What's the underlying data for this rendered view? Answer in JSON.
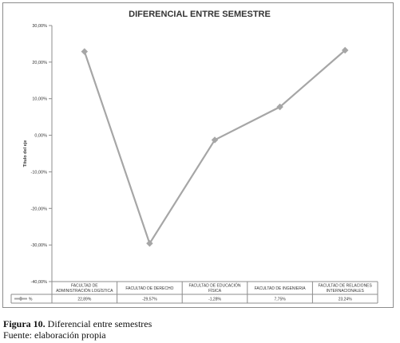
{
  "chart_data": {
    "type": "line",
    "title": "DIFERENCIAL ENTRE SEMESTRE",
    "ylabel": "Título del eje",
    "xlabel": "",
    "ylim": [
      -40,
      30
    ],
    "ytick_values": [
      30,
      20,
      10,
      0,
      -10,
      -20,
      -30,
      -40
    ],
    "ytick_labels": [
      "30,00%",
      "20,00%",
      "10,00%",
      "0,00%",
      "-10,00%",
      "-20,00%",
      "-30,00%",
      "-40,00%"
    ],
    "grid": false,
    "categories": [
      [
        "FACULTAD DE",
        "ADMINISTRACIÓN LOGÍSTICA"
      ],
      [
        "FACULTAD DE DERECHO"
      ],
      [
        "FACULTAD DE EDUCACIÓN",
        "FÍSICA"
      ],
      [
        "FACULTAD DE INGENIERIA"
      ],
      [
        "FACULTAD DE RELACIONES",
        "INTERNACIONALES"
      ]
    ],
    "series": [
      {
        "name": "%",
        "color": "#a6a6a6",
        "values": [
          22.89,
          -29.57,
          -1.28,
          7.75,
          23.24
        ],
        "value_labels": [
          "22,89%",
          "-29,57%",
          "-1,28%",
          "7,75%",
          "23,24%"
        ]
      }
    ]
  },
  "caption": {
    "figure_label": "Figura 10.",
    "figure_text": " Diferencial entre semestres",
    "source": "Fuente: elaboración propia"
  }
}
